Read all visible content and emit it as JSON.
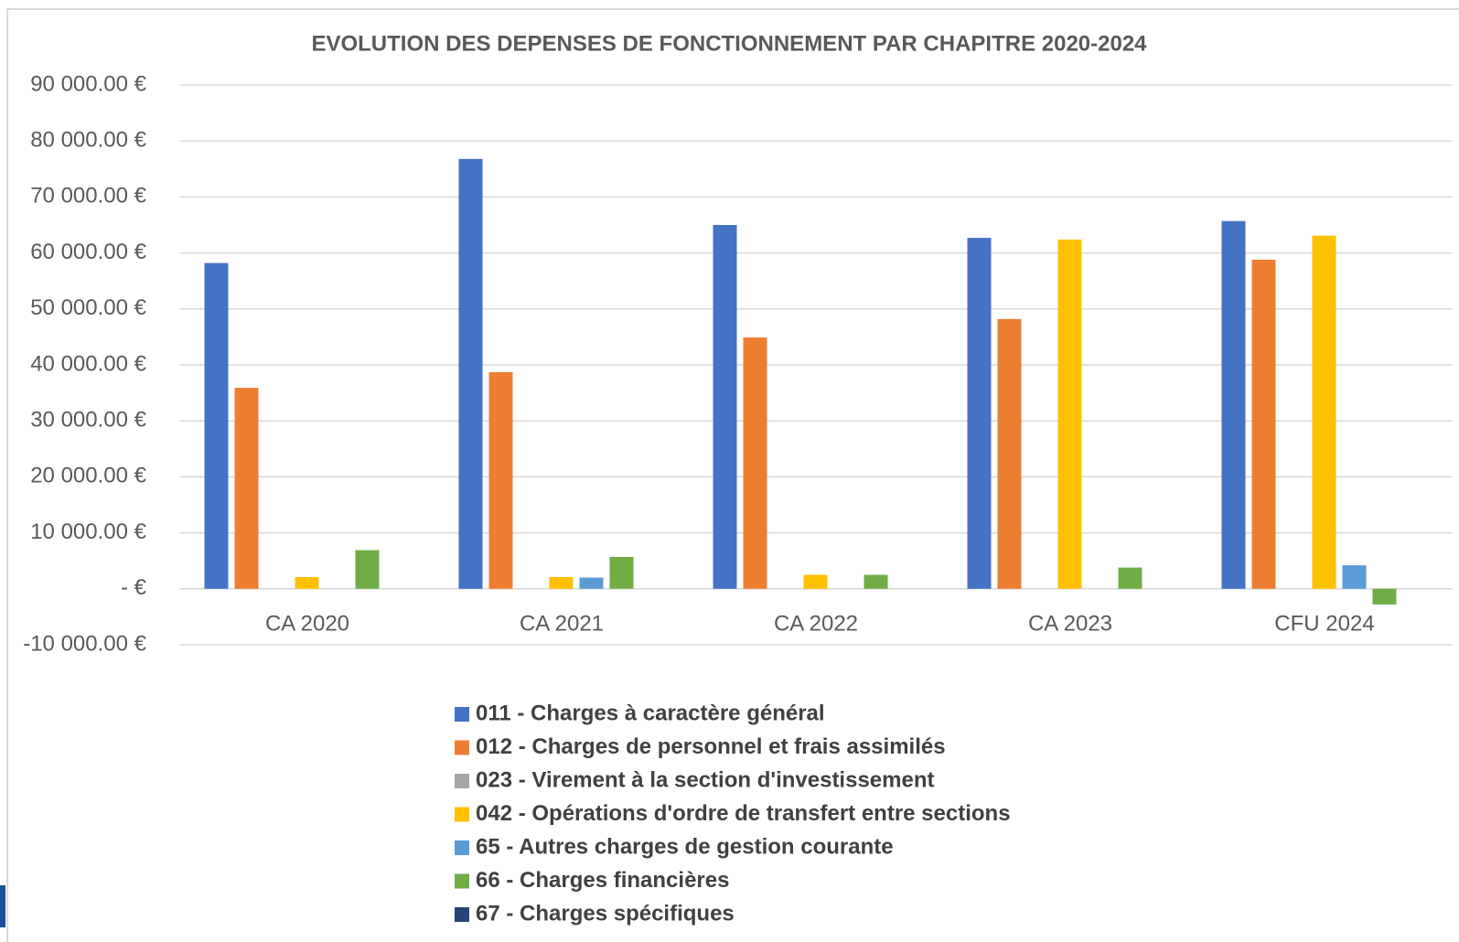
{
  "chart_data": {
    "type": "bar",
    "title": "EVOLUTION DES DEPENSES DE FONCTIONNEMENT PAR CHAPITRE 2020-2024",
    "categories": [
      "CA 2020",
      "CA 2021",
      "CA 2022",
      "CA 2023",
      "CFU 2024"
    ],
    "series": [
      {
        "name": "011 - Charges à caractère général",
        "color": "#4472c4",
        "values": [
          58200,
          76800,
          65000,
          62700,
          65700
        ]
      },
      {
        "name": "012 - Charges de personnel et frais assimilés",
        "color": "#ed7d31",
        "values": [
          35900,
          38700,
          44900,
          48200,
          58800
        ]
      },
      {
        "name": "023 - Virement à la section d'investissement",
        "color": "#a5a5a5",
        "values": [
          null,
          null,
          null,
          null,
          null
        ]
      },
      {
        "name": "042 - Opérations d'ordre de transfert entre sections",
        "color": "#ffc000",
        "values": [
          2100,
          2100,
          2500,
          62400,
          63100
        ]
      },
      {
        "name": "65 - Autres charges de gestion courante",
        "color": "#5b9bd5",
        "values": [
          null,
          2000,
          null,
          null,
          4200
        ]
      },
      {
        "name": "66 - Charges financières",
        "color": "#70ad47",
        "values": [
          6900,
          5700,
          2500,
          3800,
          -2800
        ]
      },
      {
        "name": "67 - Charges spécifiques",
        "color": "#264478",
        "values": [
          null,
          null,
          null,
          null,
          null
        ]
      }
    ],
    "ylim": [
      -10000,
      90000
    ],
    "yticks": [
      {
        "value": -10000,
        "label": "-10 000.00 €"
      },
      {
        "value": 0,
        "label": "-   €"
      },
      {
        "value": 10000,
        "label": "10 000.00 €"
      },
      {
        "value": 20000,
        "label": "20 000.00 €"
      },
      {
        "value": 30000,
        "label": "30 000.00 €"
      },
      {
        "value": 40000,
        "label": "40 000.00 €"
      },
      {
        "value": 50000,
        "label": "50 000.00 €"
      },
      {
        "value": 60000,
        "label": "60 000.00 €"
      },
      {
        "value": 70000,
        "label": "70 000.00 €"
      },
      {
        "value": 80000,
        "label": "80 000.00 €"
      },
      {
        "value": 90000,
        "label": "90 000.00 €"
      }
    ],
    "grid": true,
    "legend": "bottom"
  }
}
